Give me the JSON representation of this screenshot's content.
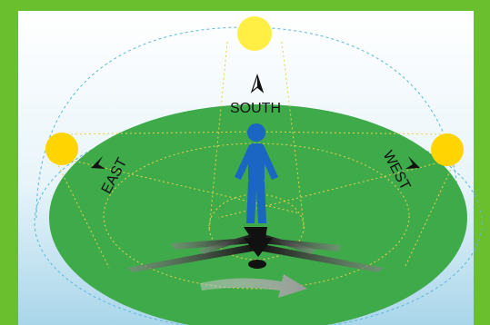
{
  "labels": {
    "south": "SOUTH",
    "east": "EAST",
    "west": "WEST"
  },
  "icons": [
    "sun-icon",
    "person-icon",
    "compass-arrow-icon",
    "rotation-arrow-icon"
  ],
  "colors": {
    "frame": "#6abf2e",
    "sky_top": "#ffffff",
    "sky_bottom": "#a9d6ea",
    "ground": "#3faa4a",
    "sun": "#ffd400",
    "sun_noon": "#ffee44",
    "person": "#1a66c2",
    "sun_path": "#5bb8d8",
    "light_rays": "#e8d24a"
  }
}
